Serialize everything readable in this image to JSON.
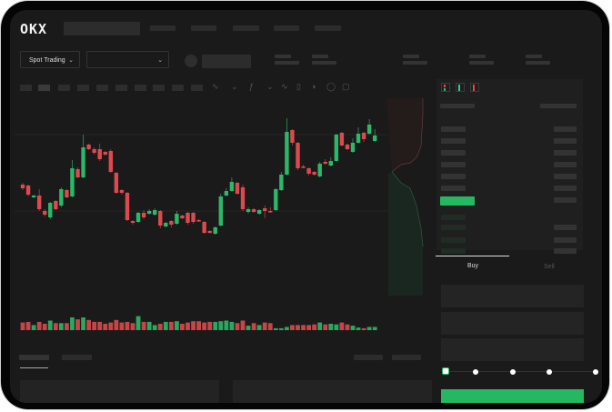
{
  "header": {
    "logo": "OKX",
    "trading_mode": "Spot Trading",
    "pair_select_value": ""
  },
  "orderbook": {
    "view_icons": [
      "orderbook-both-icon",
      "orderbook-bids-icon",
      "orderbook-asks-icon"
    ]
  },
  "order_form": {
    "tabs": [
      {
        "label": "Buy",
        "active": true
      },
      {
        "label": "Sell",
        "active": false
      }
    ],
    "slider_percent": 0,
    "slider_stops": 5
  },
  "colors": {
    "up": "#2bb868",
    "down": "#dc4a4d",
    "background": "#1a1a1a",
    "buy_button": "#25b863"
  },
  "chart_data": {
    "type": "candlestick",
    "title": "",
    "xlabel": "",
    "ylabel": "",
    "grid": true,
    "candles_ohlc": [
      [
        67,
        63,
        69,
        61
      ],
      [
        66,
        56,
        67,
        54
      ],
      [
        53,
        55,
        56,
        52
      ],
      [
        55,
        40,
        62,
        38
      ],
      [
        38,
        34,
        40,
        32
      ],
      [
        31,
        47,
        48,
        29
      ],
      [
        49,
        40,
        50,
        39
      ],
      [
        44,
        62,
        64,
        42
      ],
      [
        61,
        53,
        62,
        52
      ],
      [
        54,
        85,
        94,
        53
      ],
      [
        84,
        75,
        86,
        74
      ],
      [
        75,
        108,
        122,
        74
      ],
      [
        111,
        106,
        112,
        105
      ],
      [
        106,
        102,
        108,
        100
      ],
      [
        106,
        95,
        112,
        93
      ],
      [
        103,
        100,
        104,
        99
      ],
      [
        104,
        81,
        106,
        80
      ],
      [
        80,
        58,
        81,
        57
      ],
      [
        61,
        58,
        62,
        56
      ],
      [
        58,
        28,
        59,
        27
      ],
      [
        27,
        25,
        28,
        23
      ],
      [
        26,
        36,
        37,
        25
      ],
      [
        36,
        31,
        39,
        29
      ],
      [
        35,
        38,
        40,
        34
      ],
      [
        34,
        39,
        41,
        33
      ],
      [
        38,
        22,
        39,
        19
      ],
      [
        21,
        25,
        26,
        20
      ],
      [
        27,
        23,
        28,
        20
      ],
      [
        24,
        35,
        38,
        23
      ],
      [
        33,
        30,
        34,
        29
      ],
      [
        36,
        25,
        37,
        23
      ],
      [
        36,
        26,
        37,
        24
      ],
      [
        28,
        27,
        29,
        26
      ],
      [
        26,
        14,
        27,
        13
      ],
      [
        16,
        14,
        17,
        13
      ],
      [
        13,
        20,
        21,
        12
      ],
      [
        22,
        54,
        57,
        21
      ],
      [
        55,
        60,
        63,
        54
      ],
      [
        60,
        70,
        75,
        59
      ],
      [
        69,
        57,
        70,
        56
      ],
      [
        64,
        40,
        67,
        38
      ],
      [
        37,
        40,
        42,
        35
      ],
      [
        40,
        37,
        41,
        36
      ],
      [
        35,
        39,
        40,
        34
      ],
      [
        41,
        38,
        44,
        30
      ],
      [
        38,
        37,
        42,
        36
      ],
      [
        39,
        62,
        63,
        38
      ],
      [
        61,
        78,
        81,
        60
      ],
      [
        78,
        125,
        140,
        77
      ],
      [
        127,
        113,
        128,
        110
      ],
      [
        113,
        85,
        114,
        83
      ],
      [
        87,
        86,
        89,
        85
      ],
      [
        85,
        79,
        86,
        77
      ],
      [
        81,
        78,
        82,
        77
      ],
      [
        76,
        90,
        92,
        75
      ],
      [
        92,
        90,
        95,
        89
      ],
      [
        88,
        93,
        97,
        87
      ],
      [
        93,
        122,
        123,
        92
      ],
      [
        124,
        110,
        125,
        109
      ],
      [
        111,
        106,
        112,
        105
      ],
      [
        103,
        113,
        118,
        102
      ],
      [
        113,
        123,
        130,
        112
      ],
      [
        124,
        117,
        125,
        114
      ],
      [
        123,
        133,
        139,
        122
      ],
      [
        115,
        121,
        128,
        114
      ]
    ],
    "volumes": [
      12,
      13,
      8,
      13,
      10,
      15,
      11,
      11,
      11,
      20,
      17,
      20,
      16,
      13,
      13,
      10,
      12,
      16,
      12,
      13,
      11,
      22,
      13,
      13,
      8,
      10,
      13,
      13,
      14,
      10,
      12,
      14,
      14,
      12,
      13,
      13,
      14,
      15,
      13,
      11,
      15,
      7,
      11,
      8,
      12,
      11,
      3,
      3,
      5,
      8,
      8,
      8,
      8,
      9,
      12,
      9,
      10,
      9,
      12,
      9,
      7,
      4,
      3,
      5,
      5
    ]
  }
}
